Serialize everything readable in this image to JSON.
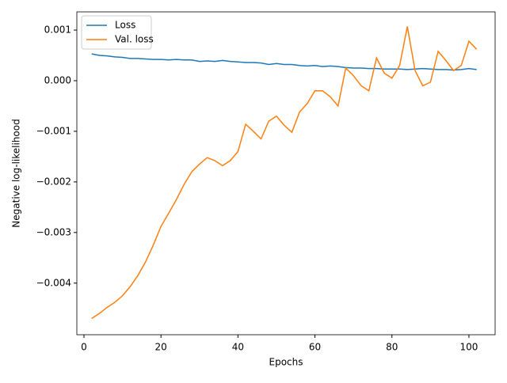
{
  "chart_data": {
    "type": "line",
    "xlabel": "Epochs",
    "ylabel": "Negative log-likelihood",
    "x": [
      2,
      4,
      6,
      8,
      10,
      12,
      14,
      16,
      18,
      20,
      22,
      24,
      26,
      28,
      30,
      32,
      34,
      36,
      38,
      40,
      42,
      44,
      46,
      48,
      50,
      52,
      54,
      56,
      58,
      60,
      62,
      64,
      66,
      68,
      70,
      72,
      74,
      76,
      78,
      80,
      82,
      84,
      86,
      88,
      90,
      92,
      94,
      96,
      98,
      100,
      102
    ],
    "series": [
      {
        "name": "Loss",
        "color": "#1f77b4",
        "values": [
          0.00053,
          0.0005,
          0.00049,
          0.00047,
          0.00046,
          0.00044,
          0.00044,
          0.00043,
          0.00042,
          0.00042,
          0.00041,
          0.00042,
          0.00041,
          0.00041,
          0.00038,
          0.00039,
          0.00038,
          0.0004,
          0.00038,
          0.00037,
          0.00036,
          0.00036,
          0.00035,
          0.00032,
          0.00034,
          0.00032,
          0.00032,
          0.0003,
          0.00029,
          0.0003,
          0.00028,
          0.00029,
          0.00028,
          0.00026,
          0.00025,
          0.00025,
          0.00024,
          0.00024,
          0.00023,
          0.00023,
          0.00023,
          0.00022,
          0.00023,
          0.00024,
          0.00023,
          0.00022,
          0.00022,
          0.00021,
          0.00022,
          0.00024,
          0.00022
        ]
      },
      {
        "name": "Val. loss",
        "color": "#ff7f0e",
        "values": [
          -0.0047,
          -0.0046,
          -0.00448,
          -0.00438,
          -0.00425,
          -0.00407,
          -0.00385,
          -0.00358,
          -0.00325,
          -0.00288,
          -0.00262,
          -0.00235,
          -0.00205,
          -0.0018,
          -0.00165,
          -0.00152,
          -0.00158,
          -0.00168,
          -0.00158,
          -0.0014,
          -0.00086,
          -0.001,
          -0.00115,
          -0.0008,
          -0.0007,
          -0.00088,
          -0.00102,
          -0.00062,
          -0.00045,
          -0.0002,
          -0.0002,
          -0.00032,
          -0.0005,
          0.00025,
          0.0001,
          -0.0001,
          -0.0002,
          0.00045,
          0.00015,
          5e-05,
          0.0003,
          0.00107,
          0.0002,
          -0.0001,
          -3e-05,
          0.00058,
          0.0004,
          0.0002,
          0.0003,
          0.00078,
          0.00062
        ]
      }
    ],
    "xlim": [
      -1.85,
      106.8
    ],
    "xticks": [
      0,
      20,
      40,
      60,
      80,
      100
    ],
    "ylim": [
      -0.00502,
      0.00136
    ],
    "yticks": [
      {
        "value": -0.004,
        "label": "−0.004"
      },
      {
        "value": -0.003,
        "label": "−0.003"
      },
      {
        "value": -0.002,
        "label": "−0.002"
      },
      {
        "value": -0.001,
        "label": "−0.001"
      },
      {
        "value": 0,
        "label": "0.000"
      },
      {
        "value": 0.001,
        "label": "0.001"
      }
    ],
    "legend": "upper left"
  }
}
